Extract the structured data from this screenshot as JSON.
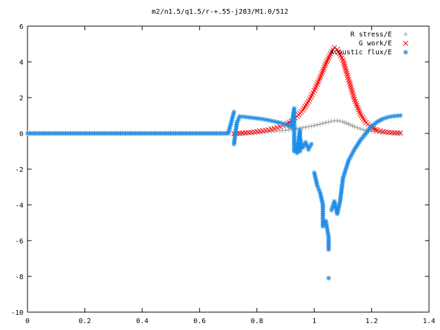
{
  "chart_data": {
    "type": "scatter",
    "title": "m2/n1.5/q1.5/r-+.55-j283/M1.0/512",
    "xlabel": "",
    "ylabel": "",
    "xlim": [
      0,
      1.4
    ],
    "ylim": [
      -10,
      6
    ],
    "x_ticks": [
      "0",
      "0.2",
      "0.4",
      "0.6",
      "0.8",
      "1",
      "1.2",
      "1.4"
    ],
    "y_ticks": [
      "6",
      "4",
      "2",
      "0",
      "-2",
      "-4",
      "-6",
      "-8",
      "-10"
    ],
    "grid": false,
    "legend_position": "top-right",
    "series": [
      {
        "name": "R stress/E",
        "marker": "+",
        "color": "#a0a0a0",
        "points": [
          [
            0.72,
            0.0
          ],
          [
            0.74,
            0.01
          ],
          [
            0.76,
            0.02
          ],
          [
            0.78,
            0.03
          ],
          [
            0.8,
            0.05
          ],
          [
            0.82,
            0.07
          ],
          [
            0.84,
            0.09
          ],
          [
            0.86,
            0.12
          ],
          [
            0.88,
            0.15
          ],
          [
            0.9,
            0.18
          ],
          [
            0.92,
            0.22
          ],
          [
            0.94,
            0.27
          ],
          [
            0.96,
            0.32
          ],
          [
            0.98,
            0.38
          ],
          [
            1.0,
            0.44
          ],
          [
            1.02,
            0.52
          ],
          [
            1.04,
            0.6
          ],
          [
            1.06,
            0.68
          ],
          [
            1.08,
            0.72
          ],
          [
            1.1,
            0.65
          ],
          [
            1.12,
            0.52
          ],
          [
            1.14,
            0.38
          ],
          [
            1.16,
            0.26
          ],
          [
            1.18,
            0.17
          ],
          [
            1.2,
            0.11
          ],
          [
            1.22,
            0.07
          ],
          [
            1.24,
            0.05
          ],
          [
            1.26,
            0.03
          ],
          [
            1.28,
            0.02
          ],
          [
            1.3,
            0.01
          ]
        ]
      },
      {
        "name": "G work/E",
        "marker": "x",
        "color": "#ff0000",
        "points": [
          [
            0.72,
            -0.02
          ],
          [
            0.74,
            0.0
          ],
          [
            0.76,
            0.03
          ],
          [
            0.78,
            0.06
          ],
          [
            0.8,
            0.1
          ],
          [
            0.82,
            0.15
          ],
          [
            0.84,
            0.2
          ],
          [
            0.86,
            0.28
          ],
          [
            0.88,
            0.38
          ],
          [
            0.9,
            0.5
          ],
          [
            0.92,
            0.68
          ],
          [
            0.94,
            0.95
          ],
          [
            0.96,
            1.3
          ],
          [
            0.98,
            1.8
          ],
          [
            1.0,
            2.4
          ],
          [
            1.02,
            3.1
          ],
          [
            1.04,
            3.9
          ],
          [
            1.06,
            4.55
          ],
          [
            1.07,
            4.8
          ],
          [
            1.08,
            4.7
          ],
          [
            1.1,
            4.1
          ],
          [
            1.12,
            3.0
          ],
          [
            1.14,
            1.9
          ],
          [
            1.16,
            1.1
          ],
          [
            1.18,
            0.6
          ],
          [
            1.2,
            0.32
          ],
          [
            1.22,
            0.18
          ],
          [
            1.24,
            0.1
          ],
          [
            1.26,
            0.06
          ],
          [
            1.28,
            0.03
          ],
          [
            1.3,
            0.02
          ]
        ]
      },
      {
        "name": "Acoustic flux/E",
        "marker": "*",
        "color": "#1e8ce6",
        "points": [
          [
            0.0,
            0.0
          ],
          [
            0.05,
            0.0
          ],
          [
            0.1,
            0.0
          ],
          [
            0.15,
            0.0
          ],
          [
            0.2,
            0.0
          ],
          [
            0.25,
            0.0
          ],
          [
            0.3,
            0.0
          ],
          [
            0.35,
            0.0
          ],
          [
            0.4,
            0.0
          ],
          [
            0.45,
            0.0
          ],
          [
            0.5,
            0.0
          ],
          [
            0.55,
            0.0
          ],
          [
            0.6,
            0.0
          ],
          [
            0.65,
            0.0
          ],
          [
            0.7,
            0.0
          ],
          [
            0.72,
            1.2
          ],
          [
            0.72,
            -0.6
          ],
          [
            0.73,
            0.6
          ],
          [
            0.74,
            0.95
          ],
          [
            0.76,
            0.92
          ],
          [
            0.78,
            0.88
          ],
          [
            0.8,
            0.84
          ],
          [
            0.82,
            0.8
          ],
          [
            0.84,
            0.74
          ],
          [
            0.86,
            0.67
          ],
          [
            0.88,
            0.6
          ],
          [
            0.9,
            0.5
          ],
          [
            0.92,
            0.35
          ],
          [
            0.93,
            1.4
          ],
          [
            0.93,
            1.0
          ],
          [
            0.93,
            -0.4
          ],
          [
            0.93,
            -1.0
          ],
          [
            0.94,
            -0.6
          ],
          [
            0.94,
            -1.1
          ],
          [
            0.95,
            0.2
          ],
          [
            0.95,
            -1.0
          ],
          [
            0.95,
            -0.3
          ],
          [
            0.96,
            -0.8
          ],
          [
            0.97,
            -0.5
          ],
          [
            0.98,
            -0.9
          ],
          [
            0.99,
            -0.6
          ],
          [
            1.0,
            -2.2
          ],
          [
            1.01,
            -2.9
          ],
          [
            1.02,
            -3.3
          ],
          [
            1.03,
            -4.0
          ],
          [
            1.03,
            -5.2
          ],
          [
            1.04,
            -4.9
          ],
          [
            1.05,
            -5.8
          ],
          [
            1.05,
            -6.5
          ],
          [
            1.05,
            -8.1
          ],
          [
            1.06,
            -4.3
          ],
          [
            1.07,
            -3.8
          ],
          [
            1.08,
            -4.5
          ],
          [
            1.09,
            -3.8
          ],
          [
            1.1,
            -2.5
          ],
          [
            1.12,
            -1.5
          ],
          [
            1.14,
            -0.9
          ],
          [
            1.16,
            -0.4
          ],
          [
            1.18,
            0.0
          ],
          [
            1.2,
            0.4
          ],
          [
            1.22,
            0.65
          ],
          [
            1.24,
            0.82
          ],
          [
            1.26,
            0.92
          ],
          [
            1.28,
            0.97
          ],
          [
            1.3,
            1.0
          ]
        ]
      }
    ]
  }
}
